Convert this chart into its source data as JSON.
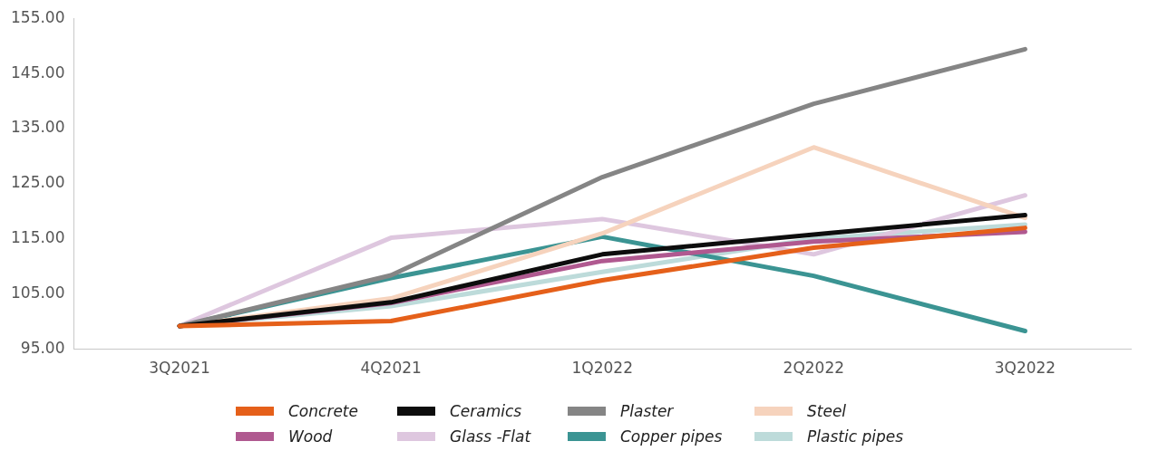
{
  "chart_data": {
    "type": "line",
    "categories": [
      "3Q2021",
      "4Q2021",
      "1Q2022",
      "2Q2022",
      "3Q2022"
    ],
    "ylim": [
      95,
      155
    ],
    "yticks": [
      {
        "value": 95,
        "label": "95.00"
      },
      {
        "value": 105,
        "label": "105.00"
      },
      {
        "value": 115,
        "label": "115.00"
      },
      {
        "value": 125,
        "label": "125.00"
      },
      {
        "value": 135,
        "label": "135.00"
      },
      {
        "value": 145,
        "label": "145.00"
      },
      {
        "value": 155,
        "label": "155.00"
      }
    ],
    "grid": false,
    "legend": "bottom",
    "marker": "none",
    "line_style": "solid",
    "series": [
      {
        "name": "Concrete",
        "color": "#e5601a",
        "values": [
          99.2,
          100.1,
          107.5,
          113.4,
          117
        ]
      },
      {
        "name": "Ceramics",
        "color": "#0d0d0d",
        "values": [
          99.2,
          103.5,
          112.2,
          115.8,
          119.3
        ]
      },
      {
        "name": "Plaster",
        "color": "#858585",
        "values": [
          99.2,
          108.4,
          126.2,
          139.5,
          149.4
        ]
      },
      {
        "name": "Steel",
        "color": "#f6d3bd",
        "values": [
          99.2,
          104.2,
          116,
          131.6,
          118.8
        ]
      },
      {
        "name": "Wood",
        "color": "#b05990",
        "values": [
          99.2,
          103.4,
          111,
          114.5,
          116.3
        ]
      },
      {
        "name": "Glass -Flat",
        "color": "#dec7df",
        "values": [
          99.2,
          115.2,
          118.6,
          112.2,
          122.9
        ]
      },
      {
        "name": "Copper pipes",
        "color": "#3b9493",
        "values": [
          99.2,
          107.9,
          115.4,
          108.3,
          98.3
        ]
      },
      {
        "name": "Plastic pipes",
        "color": "#bddbda",
        "values": [
          99.2,
          102.8,
          109,
          115,
          117.6
        ]
      }
    ]
  }
}
